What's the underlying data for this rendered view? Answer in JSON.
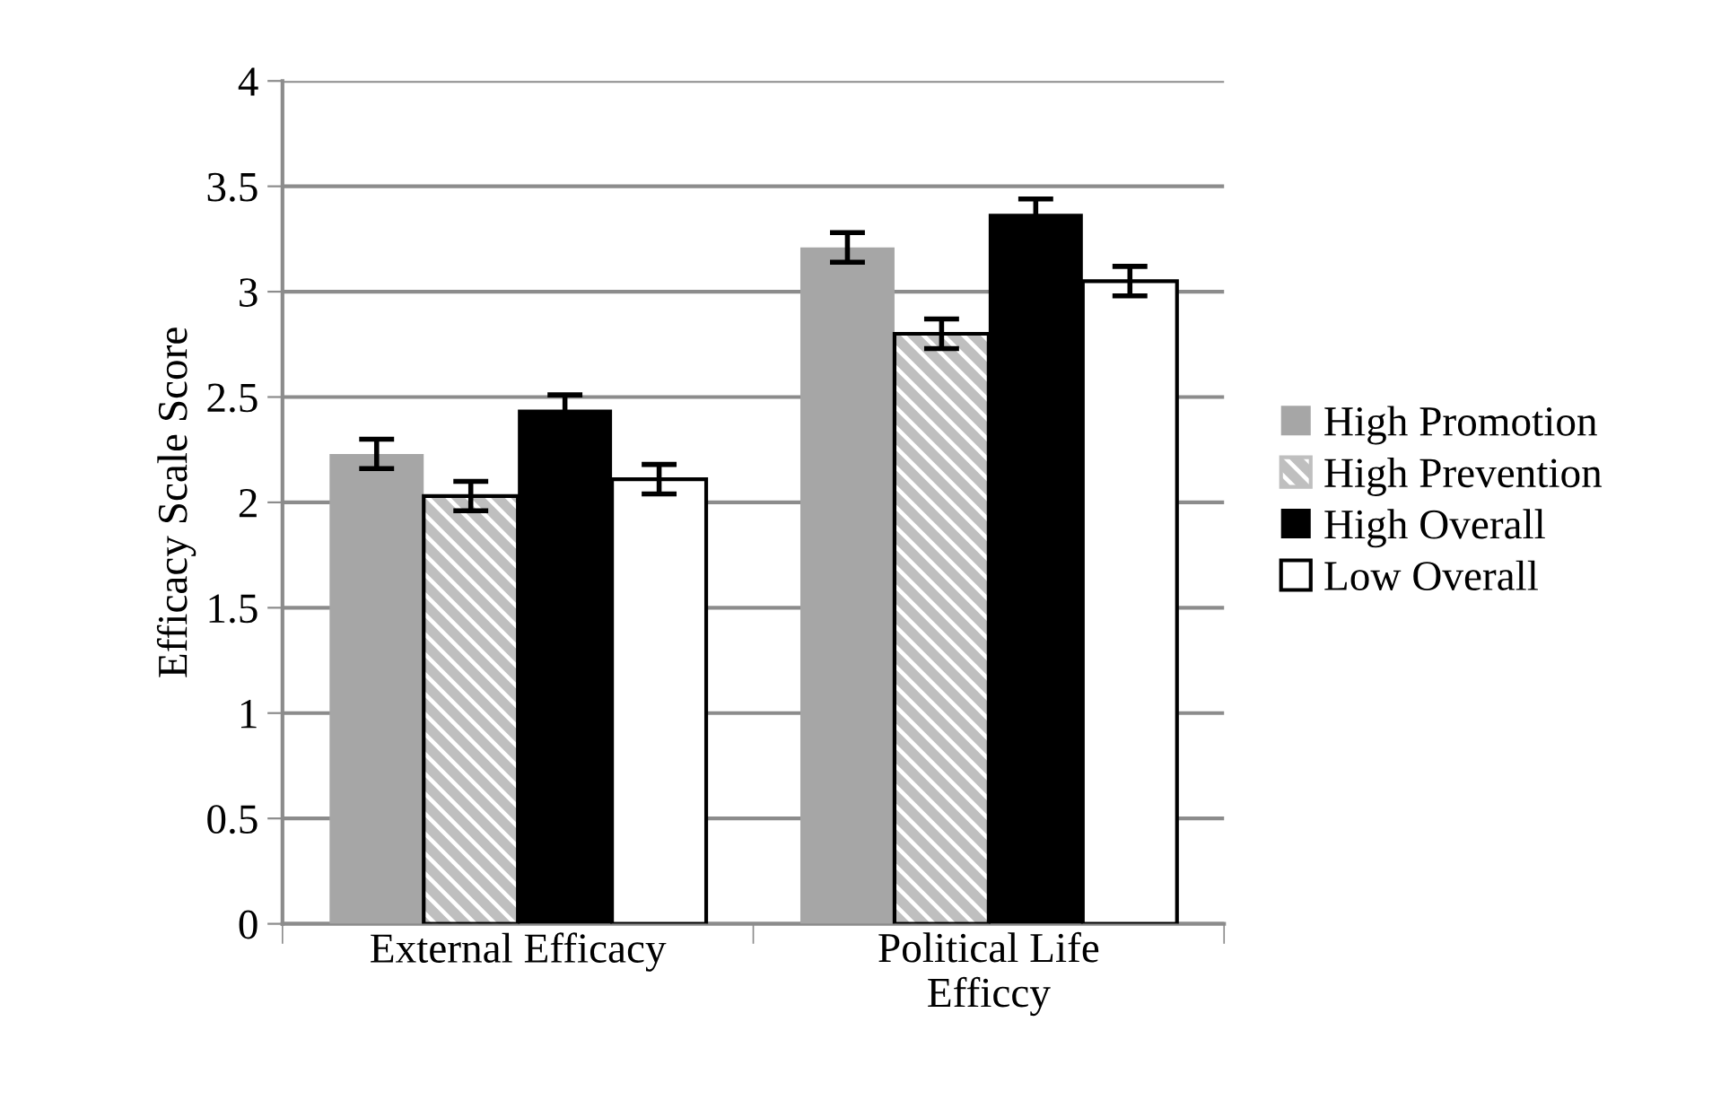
{
  "chart_data": {
    "type": "bar",
    "ylabel": "Efficacy Scale Score",
    "categories": [
      "External Efficacy",
      "Political Life\nEfficcy"
    ],
    "series": [
      {
        "name": "High Promotion",
        "color": "#a6a6a6",
        "values": [
          2.23,
          3.21
        ],
        "errors": [
          0.07,
          0.07
        ]
      },
      {
        "name": "High Prevention",
        "color": "#bfbfbf",
        "values": [
          2.03,
          2.8
        ],
        "errors": [
          0.07,
          0.07
        ]
      },
      {
        "name": "High Overall",
        "color": "#000000",
        "values": [
          2.44,
          3.37
        ],
        "errors": [
          0.07,
          0.07
        ]
      },
      {
        "name": "Low Overall",
        "color": "#ffffff",
        "values": [
          2.11,
          3.05
        ],
        "errors": [
          0.07,
          0.07
        ]
      }
    ],
    "ylim": [
      0,
      4
    ],
    "yticks": [
      0,
      0.5,
      1,
      1.5,
      2,
      2.5,
      3,
      3.5,
      4
    ],
    "grid": "y",
    "legend": "right"
  }
}
